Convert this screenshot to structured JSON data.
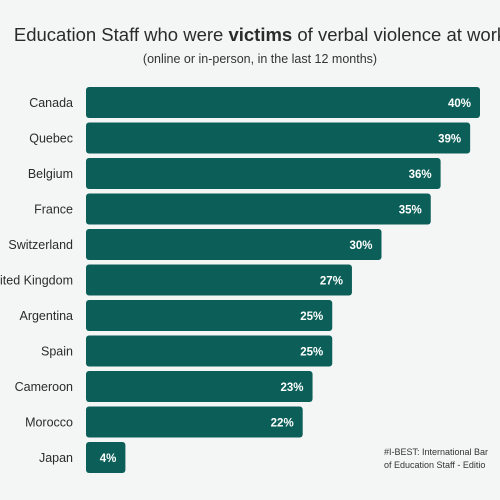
{
  "header": {
    "title_before": "Education Staff who were ",
    "title_bold": "victims",
    "title_after": " of verbal violence at work",
    "subtitle": "(online or in-person, in the last 12 months)"
  },
  "source_note": {
    "line1": "#I-BEST: International Bar",
    "line2": "of Education Staff - Editio"
  },
  "colors": {
    "bar": "#0c5f58",
    "bar_label": "#ffffff",
    "category_label": "#2b2b2b",
    "background": "#f4f6f6"
  },
  "chart_data": {
    "type": "bar",
    "orientation": "horizontal",
    "title": "Education Staff who were victims of verbal violence at work",
    "subtitle": "(online or in-person, in the last 12 months)",
    "categories": [
      "Canada",
      "Quebec",
      "Belgium",
      "France",
      "Switzerland",
      "United Kingdom",
      "Argentina",
      "Spain",
      "Cameroon",
      "Morocco",
      "Japan"
    ],
    "values": [
      40,
      39,
      36,
      35,
      30,
      27,
      25,
      25,
      23,
      22,
      4
    ],
    "value_labels": [
      "40%",
      "39%",
      "36%",
      "35%",
      "30%",
      "27%",
      "25%",
      "25%",
      "23%",
      "22%",
      "4%"
    ],
    "unit": "%",
    "xlim": [
      0,
      40
    ],
    "grid": false,
    "legend": "none"
  }
}
